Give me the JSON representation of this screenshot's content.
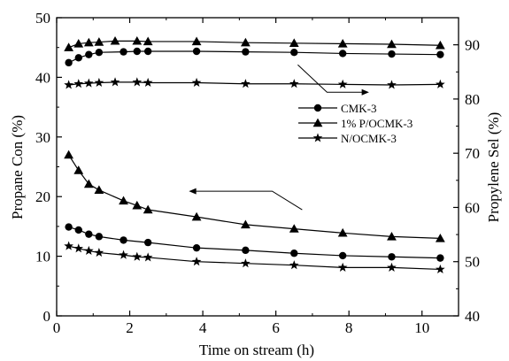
{
  "chart_data": {
    "type": "line",
    "title": "",
    "xlabel": "Time on stream (h)",
    "ylabel_left": "Propane Con (%)",
    "ylabel_right": "Propylene Sel (%)",
    "xlim": [
      0,
      11
    ],
    "ylim_left": [
      0,
      50
    ],
    "ylim_right": [
      40,
      95
    ],
    "x_ticks": [
      "0",
      "2",
      "4",
      "6",
      "8",
      "10"
    ],
    "y_left_ticks": [
      "0",
      "10",
      "20",
      "30",
      "40",
      "50"
    ],
    "y_right_ticks": [
      "40",
      "50",
      "60",
      "70",
      "80",
      "90"
    ],
    "grid": false,
    "legend_position": "center-right",
    "legend": [
      {
        "label": "CMK-3",
        "marker": "circle"
      },
      {
        "label": "1% P/OCMK-3",
        "marker": "triangle"
      },
      {
        "label": "N/OCMK-3",
        "marker": "star"
      }
    ],
    "series": [
      {
        "group": "conversion",
        "axis": "left",
        "marker": "circle",
        "x": [
          0.33,
          0.6,
          0.88,
          1.16,
          1.83,
          2.5,
          3.83,
          5.17,
          6.5,
          7.83,
          9.17,
          10.5
        ],
        "y": [
          14.9,
          14.4,
          13.7,
          13.3,
          12.7,
          12.3,
          11.4,
          11.0,
          10.5,
          10.1,
          9.9,
          9.7
        ]
      },
      {
        "group": "conversion",
        "axis": "left",
        "marker": "triangle",
        "x": [
          0.33,
          0.6,
          0.88,
          1.16,
          1.83,
          2.2,
          2.5,
          3.83,
          5.17,
          6.5,
          7.83,
          9.17,
          10.5
        ],
        "y": [
          27.0,
          24.4,
          22.1,
          21.1,
          19.3,
          18.5,
          17.8,
          16.6,
          15.3,
          14.6,
          13.9,
          13.3,
          13.0
        ]
      },
      {
        "group": "conversion",
        "axis": "left",
        "marker": "star",
        "x": [
          0.33,
          0.6,
          0.88,
          1.16,
          1.83,
          2.2,
          2.5,
          3.83,
          5.17,
          6.5,
          7.83,
          9.17,
          10.5
        ],
        "y": [
          11.7,
          11.3,
          10.9,
          10.6,
          10.2,
          9.9,
          9.8,
          9.1,
          8.8,
          8.5,
          8.1,
          8.1,
          7.8
        ]
      },
      {
        "group": "selectivity",
        "axis": "right",
        "marker": "circle",
        "x": [
          0.33,
          0.6,
          0.88,
          1.16,
          1.83,
          2.2,
          2.5,
          3.83,
          5.17,
          6.5,
          7.83,
          9.17,
          10.5
        ],
        "y": [
          86.7,
          87.6,
          88.2,
          88.6,
          88.7,
          88.8,
          88.8,
          88.8,
          88.7,
          88.6,
          88.4,
          88.3,
          88.2
        ]
      },
      {
        "group": "selectivity",
        "axis": "right",
        "marker": "triangle",
        "x": [
          0.33,
          0.6,
          0.88,
          1.16,
          1.6,
          2.2,
          2.5,
          3.83,
          5.17,
          6.5,
          7.83,
          9.17,
          10.5
        ],
        "y": [
          89.5,
          90.2,
          90.4,
          90.5,
          90.7,
          90.7,
          90.6,
          90.6,
          90.4,
          90.3,
          90.2,
          90.1,
          89.9
        ]
      },
      {
        "group": "selectivity",
        "axis": "right",
        "marker": "star",
        "x": [
          0.33,
          0.6,
          0.88,
          1.16,
          1.6,
          2.2,
          2.5,
          3.83,
          5.17,
          6.5,
          7.83,
          9.17,
          10.5
        ],
        "y": [
          82.6,
          82.8,
          82.9,
          83.0,
          83.1,
          83.1,
          83.0,
          83.0,
          82.8,
          82.8,
          82.7,
          82.6,
          82.7
        ]
      }
    ],
    "annotations": [
      {
        "type": "arrow",
        "direction": "right",
        "meaning": "selectivity curves read on right axis"
      },
      {
        "type": "arrow",
        "direction": "left",
        "meaning": "conversion curves read on left axis"
      }
    ]
  }
}
